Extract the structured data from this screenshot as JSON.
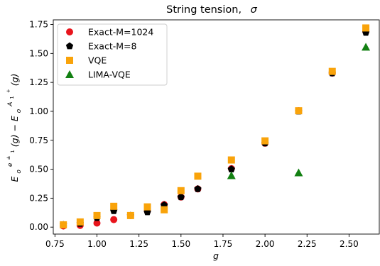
{
  "chart_data": {
    "type": "scatter",
    "title": "String tension,  σ",
    "title_main": "String tension,",
    "title_symbol": "σ",
    "xlabel": "g",
    "ylabel_E": "E",
    "ylabel_sub_o": "o",
    "ylabel_sup_1": "e",
    "ylabel_sup_1b": "±",
    "ylabel_sub_1b": "1",
    "ylabel_mid": "(g) − E",
    "ylabel_sup_2": "A",
    "ylabel_sup_2sub": "1",
    "ylabel_sup_2b": "+",
    "ylabel_end": "(g)",
    "xlim": [
      0.74,
      2.68
    ],
    "ylim": [
      -0.06,
      1.79
    ],
    "xticks": [
      0.75,
      1.0,
      1.25,
      1.5,
      1.75,
      2.0,
      2.25,
      2.5
    ],
    "xtick_labels": [
      "0.75",
      "1.00",
      "1.25",
      "1.50",
      "1.75",
      "2.00",
      "2.25",
      "2.50"
    ],
    "yticks": [
      0.0,
      0.25,
      0.5,
      0.75,
      1.0,
      1.25,
      1.5,
      1.75
    ],
    "ytick_labels": [
      "0.00",
      "0.25",
      "0.50",
      "0.75",
      "1.00",
      "1.25",
      "1.50",
      "1.75"
    ],
    "grid": false,
    "legend_position": "top-left",
    "series": [
      {
        "name": "Exact-M=1024",
        "marker": "circle",
        "color": "#e8141c",
        "points": [
          [
            0.8,
            0.01
          ],
          [
            0.9,
            0.015
          ],
          [
            1.0,
            0.035
          ],
          [
            1.1,
            0.065
          ],
          [
            1.2,
            0.1
          ],
          [
            1.3,
            0.14
          ],
          [
            1.4,
            0.195
          ],
          [
            1.5,
            0.26
          ],
          [
            1.6,
            0.33
          ],
          [
            1.8,
            0.505
          ],
          [
            2.0,
            0.725
          ],
          [
            2.2,
            1.005
          ],
          [
            2.4,
            1.33
          ],
          [
            2.6,
            1.69
          ]
        ]
      },
      {
        "name": "Exact-M=8",
        "marker": "pentagon",
        "color": "#000000",
        "points": [
          [
            0.8,
            0.02
          ],
          [
            0.9,
            0.03
          ],
          [
            1.0,
            0.08
          ],
          [
            1.1,
            0.14
          ],
          [
            1.2,
            0.1
          ],
          [
            1.3,
            0.13
          ],
          [
            1.4,
            0.19
          ],
          [
            1.5,
            0.26
          ],
          [
            1.6,
            0.33
          ],
          [
            1.8,
            0.5
          ],
          [
            2.0,
            0.725
          ],
          [
            2.2,
            1.0
          ],
          [
            2.4,
            1.33
          ],
          [
            2.6,
            1.68
          ]
        ]
      },
      {
        "name": "VQE",
        "marker": "square",
        "color": "#f9a30a",
        "points": [
          [
            0.8,
            0.02
          ],
          [
            0.9,
            0.045
          ],
          [
            1.0,
            0.1
          ],
          [
            1.1,
            0.18
          ],
          [
            1.2,
            0.1
          ],
          [
            1.3,
            0.175
          ],
          [
            1.4,
            0.15
          ],
          [
            1.5,
            0.315
          ],
          [
            1.6,
            0.44
          ],
          [
            1.8,
            0.58
          ],
          [
            2.0,
            0.745
          ],
          [
            2.2,
            1.005
          ],
          [
            2.4,
            1.345
          ],
          [
            2.6,
            1.72
          ]
        ]
      },
      {
        "name": "LIMA-VQE",
        "marker": "triangle",
        "color": "#128012",
        "points": [
          [
            1.8,
            0.445
          ],
          [
            2.2,
            0.47
          ],
          [
            2.6,
            1.555
          ]
        ]
      }
    ]
  }
}
